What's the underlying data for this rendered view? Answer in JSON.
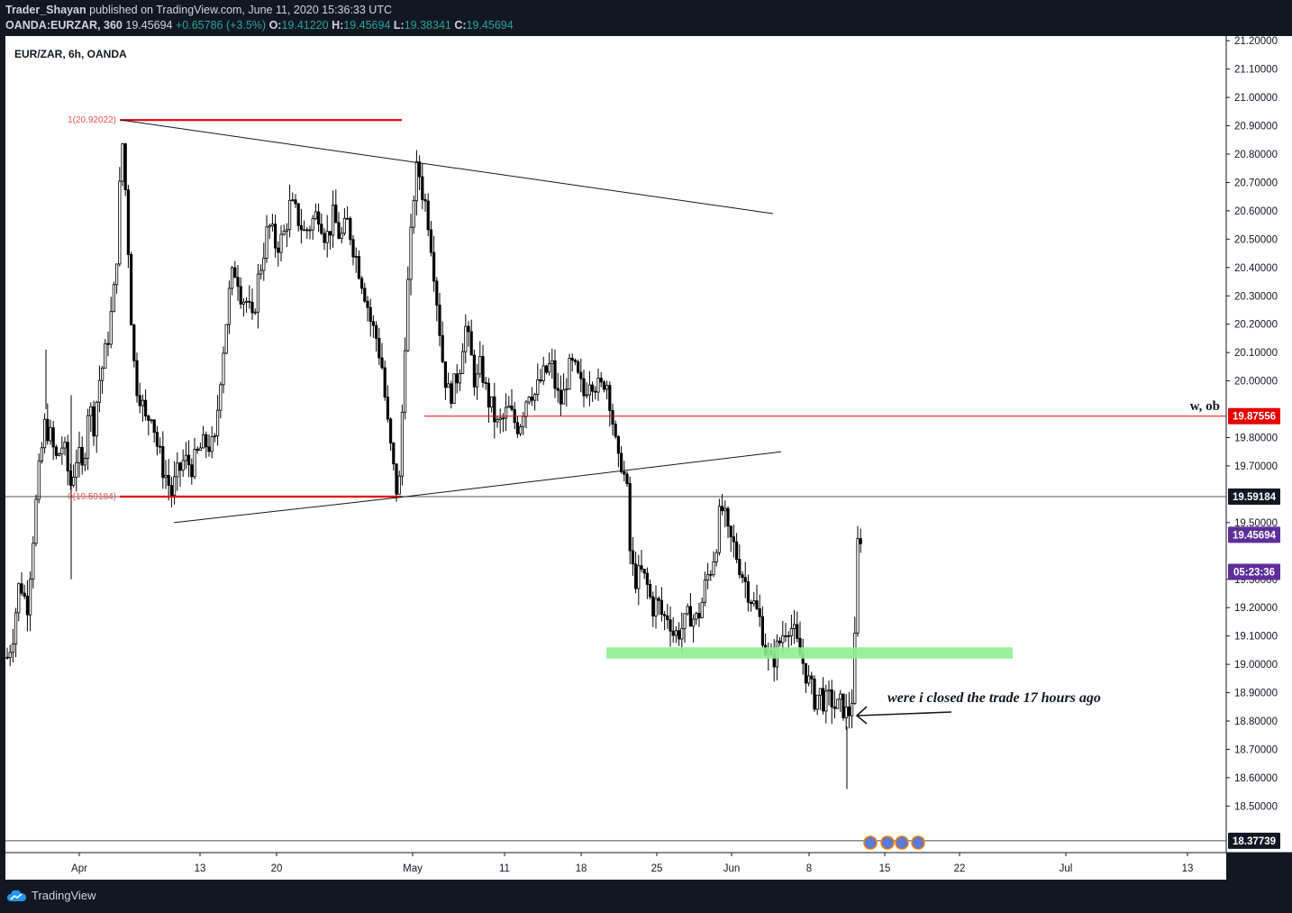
{
  "header": {
    "publish_user": "Trader_Shayan",
    "publish_line": " published on TradingView.com, June 11, 2020 15:36:33 UTC",
    "symbol_interval": "OANDA:EURZAR, 360",
    "last": "19.45694",
    "change": "+0.65786 (+3.5%)",
    "o_label": "O:",
    "o": "19.41220",
    "h_label": "H:",
    "h": "19.45694",
    "l_label": "L:",
    "l": "19.38341",
    "c_label": "C:",
    "c": "19.45694"
  },
  "footer": {
    "brand": "TradingView"
  },
  "colors": {
    "background": "#ffffff",
    "frame": "#131722",
    "candle": "#000000",
    "fib_line": "#e60000",
    "level_line": "#e60000",
    "zone": "#90ee90",
    "last_price": "#5d2e9a",
    "up_text": "#26a69a"
  },
  "chart_data": {
    "type": "candlestick",
    "title": "EUR/ZAR, 6h, OANDA",
    "x_tick_labels": [
      "Apr",
      "13",
      "20",
      "May",
      "11",
      "18",
      "25",
      "Jun",
      "8",
      "15",
      "22",
      "Jul",
      "13"
    ],
    "y_tick_labels": [
      "21.20000",
      "21.10000",
      "21.00000",
      "20.90000",
      "20.80000",
      "20.70000",
      "20.60000",
      "20.50000",
      "20.40000",
      "20.30000",
      "20.20000",
      "20.10000",
      "20.00000",
      "19.80000",
      "19.70000",
      "19.50000",
      "19.30000",
      "19.20000",
      "19.10000",
      "19.00000",
      "18.90000",
      "18.80000",
      "18.70000",
      "18.60000",
      "18.50000"
    ],
    "ylim": [
      18.37,
      21.22
    ],
    "price_labels": [
      {
        "text": "19.87556",
        "value": 19.87556,
        "color": "#e60000"
      },
      {
        "text": "19.59184",
        "value": 19.59184,
        "color": "#131722"
      },
      {
        "text": "19.45694",
        "value": 19.45694,
        "color": "#5d2e9a"
      },
      {
        "text": "05:23:36",
        "value": 19.39,
        "color": "#5d2e9a"
      },
      {
        "text": "18.37739",
        "value": 18.37739,
        "color": "#131722"
      }
    ],
    "fib_labels": {
      "top": "1(20.92022)",
      "bottom": "0(19.59184)"
    },
    "level_label": "w, ob",
    "annotation": "were i closed the trade 17 hours ago",
    "series": [
      {
        "name": "",
        "path_close": [
          [
            0,
            18.85
          ],
          [
            6,
            19.0
          ],
          [
            14,
            19.1
          ],
          [
            22,
            19.3
          ],
          [
            30,
            19.2
          ],
          [
            38,
            19.5
          ],
          [
            44,
            19.7
          ],
          [
            50,
            19.85
          ],
          [
            56,
            19.8
          ],
          [
            62,
            19.72
          ],
          [
            70,
            19.78
          ],
          [
            78,
            19.63
          ],
          [
            86,
            19.75
          ],
          [
            92,
            19.67
          ],
          [
            98,
            19.92
          ],
          [
            104,
            19.85
          ],
          [
            110,
            20.0
          ],
          [
            116,
            20.08
          ],
          [
            122,
            20.2
          ],
          [
            128,
            20.35
          ],
          [
            132,
            20.6
          ],
          [
            135,
            20.88
          ],
          [
            138,
            20.75
          ],
          [
            142,
            20.5
          ],
          [
            146,
            20.2
          ],
          [
            150,
            20.0
          ],
          [
            156,
            19.95
          ],
          [
            162,
            19.85
          ],
          [
            168,
            19.9
          ],
          [
            174,
            19.78
          ],
          [
            180,
            19.7
          ],
          [
            186,
            19.65
          ],
          [
            190,
            19.6
          ],
          [
            196,
            19.66
          ],
          [
            204,
            19.72
          ],
          [
            214,
            19.7
          ],
          [
            222,
            19.76
          ],
          [
            230,
            19.78
          ],
          [
            238,
            19.76
          ],
          [
            244,
            20.0
          ],
          [
            250,
            20.18
          ],
          [
            256,
            20.35
          ],
          [
            262,
            20.4
          ],
          [
            268,
            20.3
          ],
          [
            274,
            20.28
          ],
          [
            280,
            20.2
          ],
          [
            286,
            20.35
          ],
          [
            292,
            20.45
          ],
          [
            298,
            20.55
          ],
          [
            306,
            20.48
          ],
          [
            314,
            20.5
          ],
          [
            322,
            20.62
          ],
          [
            330,
            20.58
          ],
          [
            338,
            20.52
          ],
          [
            346,
            20.56
          ],
          [
            354,
            20.6
          ],
          [
            362,
            20.5
          ],
          [
            370,
            20.58
          ],
          [
            378,
            20.5
          ],
          [
            386,
            20.56
          ],
          [
            394,
            20.45
          ],
          [
            400,
            20.38
          ],
          [
            406,
            20.3
          ],
          [
            412,
            20.2
          ],
          [
            418,
            20.15
          ],
          [
            424,
            20.05
          ],
          [
            430,
            19.85
          ],
          [
            436,
            19.7
          ],
          [
            440,
            19.62
          ],
          [
            444,
            19.65
          ],
          [
            448,
            20.05
          ],
          [
            452,
            20.3
          ],
          [
            456,
            20.5
          ],
          [
            460,
            20.7
          ],
          [
            464,
            20.76
          ],
          [
            468,
            20.68
          ],
          [
            474,
            20.6
          ],
          [
            480,
            20.45
          ],
          [
            486,
            20.25
          ],
          [
            492,
            20.05
          ],
          [
            498,
            19.95
          ],
          [
            504,
            19.98
          ],
          [
            510,
            20.05
          ],
          [
            516,
            20.2
          ],
          [
            522,
            20.1
          ],
          [
            528,
            19.98
          ],
          [
            534,
            20.06
          ],
          [
            540,
            19.95
          ],
          [
            546,
            19.9
          ],
          [
            552,
            19.84
          ],
          [
            558,
            19.86
          ],
          [
            564,
            19.9
          ],
          [
            570,
            19.86
          ],
          [
            576,
            19.84
          ],
          [
            582,
            19.92
          ],
          [
            588,
            19.98
          ],
          [
            594,
            19.95
          ],
          [
            600,
            20.0
          ],
          [
            606,
            20.03
          ],
          [
            612,
            20.06
          ],
          [
            618,
            19.95
          ],
          [
            624,
            19.92
          ],
          [
            630,
            20.03
          ],
          [
            636,
            20.05
          ],
          [
            642,
            20.0
          ],
          [
            648,
            19.95
          ],
          [
            654,
            20.02
          ],
          [
            660,
            20.0
          ],
          [
            666,
            19.96
          ],
          [
            672,
            20.02
          ],
          [
            678,
            19.92
          ],
          [
            682,
            19.8
          ],
          [
            686,
            19.7
          ],
          [
            690,
            19.72
          ],
          [
            696,
            19.6
          ],
          [
            700,
            19.35
          ],
          [
            706,
            19.3
          ],
          [
            712,
            19.32
          ],
          [
            718,
            19.28
          ],
          [
            724,
            19.2
          ],
          [
            730,
            19.22
          ],
          [
            736,
            19.16
          ],
          [
            742,
            19.18
          ],
          [
            748,
            19.1
          ],
          [
            754,
            19.12
          ],
          [
            760,
            19.14
          ],
          [
            766,
            19.18
          ],
          [
            772,
            19.15
          ],
          [
            778,
            19.2
          ],
          [
            784,
            19.3
          ],
          [
            790,
            19.35
          ],
          [
            796,
            19.45
          ],
          [
            800,
            19.56
          ],
          [
            804,
            19.52
          ],
          [
            808,
            19.45
          ],
          [
            814,
            19.42
          ],
          [
            820,
            19.36
          ],
          [
            826,
            19.3
          ],
          [
            832,
            19.25
          ],
          [
            838,
            19.2
          ],
          [
            844,
            19.15
          ],
          [
            850,
            19.05
          ],
          [
            856,
            19.0
          ],
          [
            862,
            19.05
          ],
          [
            868,
            19.1
          ],
          [
            874,
            19.15
          ],
          [
            880,
            19.12
          ],
          [
            886,
            19.05
          ],
          [
            892,
            19.0
          ],
          [
            898,
            18.93
          ],
          [
            904,
            18.88
          ],
          [
            910,
            18.9
          ],
          [
            916,
            18.86
          ],
          [
            922,
            18.88
          ],
          [
            928,
            18.84
          ],
          [
            934,
            18.86
          ],
          [
            940,
            18.82
          ],
          [
            944,
            18.84
          ],
          [
            948,
            18.95
          ],
          [
            951,
            19.41
          ],
          [
            955,
            19.45694
          ]
        ]
      }
    ],
    "zone": {
      "from_x": 673,
      "to_x": 1124,
      "from_y": 19.02,
      "to_y": 19.06
    }
  }
}
